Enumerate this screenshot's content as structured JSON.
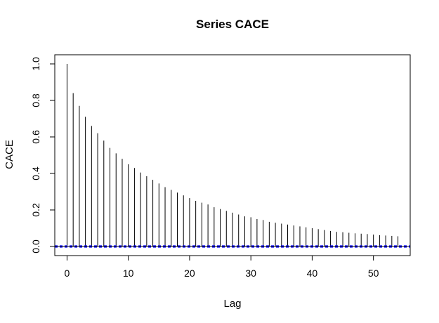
{
  "chart_data": {
    "type": "bar",
    "title": "Series CACE",
    "xlabel": "Lag",
    "ylabel": "CACE",
    "xlim": [
      -2,
      56
    ],
    "ylim": [
      -0.05,
      1.05
    ],
    "x_ticks": [
      0,
      10,
      20,
      30,
      40,
      50
    ],
    "y_ticks": [
      0.0,
      0.2,
      0.4,
      0.6,
      0.8,
      1.0
    ],
    "x_tick_labels": [
      "0",
      "10",
      "20",
      "30",
      "40",
      "50"
    ],
    "y_tick_labels": [
      "0.0",
      "0.2",
      "0.4",
      "0.6",
      "0.8",
      "1.0"
    ],
    "grid": false,
    "legend": "none",
    "lags": [
      0,
      1,
      2,
      3,
      4,
      5,
      6,
      7,
      8,
      9,
      10,
      11,
      12,
      13,
      14,
      15,
      16,
      17,
      18,
      19,
      20,
      21,
      22,
      23,
      24,
      25,
      26,
      27,
      28,
      29,
      30,
      31,
      32,
      33,
      34,
      35,
      36,
      37,
      38,
      39,
      40,
      41,
      42,
      43,
      44,
      45,
      46,
      47,
      48,
      49,
      50,
      51,
      52,
      53,
      54
    ],
    "values": [
      1.0,
      0.84,
      0.77,
      0.71,
      0.66,
      0.62,
      0.58,
      0.54,
      0.51,
      0.48,
      0.45,
      0.43,
      0.405,
      0.385,
      0.365,
      0.345,
      0.325,
      0.31,
      0.295,
      0.28,
      0.265,
      0.25,
      0.24,
      0.23,
      0.215,
      0.205,
      0.195,
      0.185,
      0.175,
      0.165,
      0.16,
      0.15,
      0.145,
      0.135,
      0.13,
      0.125,
      0.12,
      0.115,
      0.11,
      0.105,
      0.1,
      0.095,
      0.09,
      0.085,
      0.08,
      0.078,
      0.075,
      0.072,
      0.07,
      0.068,
      0.065,
      0.062,
      0.06,
      0.058,
      0.056
    ],
    "confidence_bounds": [
      -0.004,
      0.004
    ],
    "colors": {
      "spikes": "#000000",
      "confidence": "#0000ff",
      "zero_line": "#000000"
    }
  }
}
